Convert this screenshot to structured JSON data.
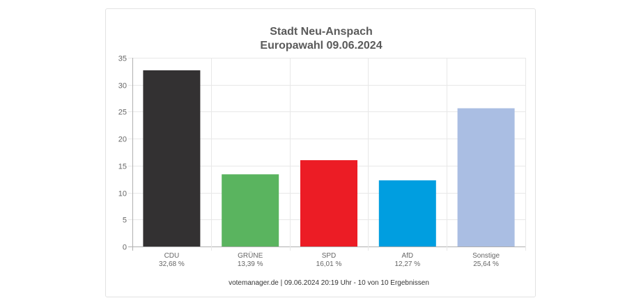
{
  "chart_data": {
    "type": "bar",
    "title": "Stadt Neu-Anspach",
    "subtitle": "Europawahl 09.06.2024",
    "categories": [
      "CDU",
      "GRÜNE",
      "SPD",
      "AfD",
      "Sonstige"
    ],
    "values": [
      32.68,
      13.39,
      16.01,
      12.27,
      25.64
    ],
    "value_labels": [
      "32,68 %",
      "13,39 %",
      "16,01 %",
      "12,27 %",
      "25,64 %"
    ],
    "colors": [
      "#333132",
      "#5ab45f",
      "#ec1c25",
      "#009ee0",
      "#aabee3"
    ],
    "yticks": [
      0,
      5,
      10,
      15,
      20,
      25,
      30,
      35
    ],
    "ylim": [
      0,
      35
    ],
    "grid": true,
    "legend": "none"
  },
  "footer": "votemanager.de | 09.06.2024 20:19 Uhr - 10 von 10 Ergebnissen"
}
